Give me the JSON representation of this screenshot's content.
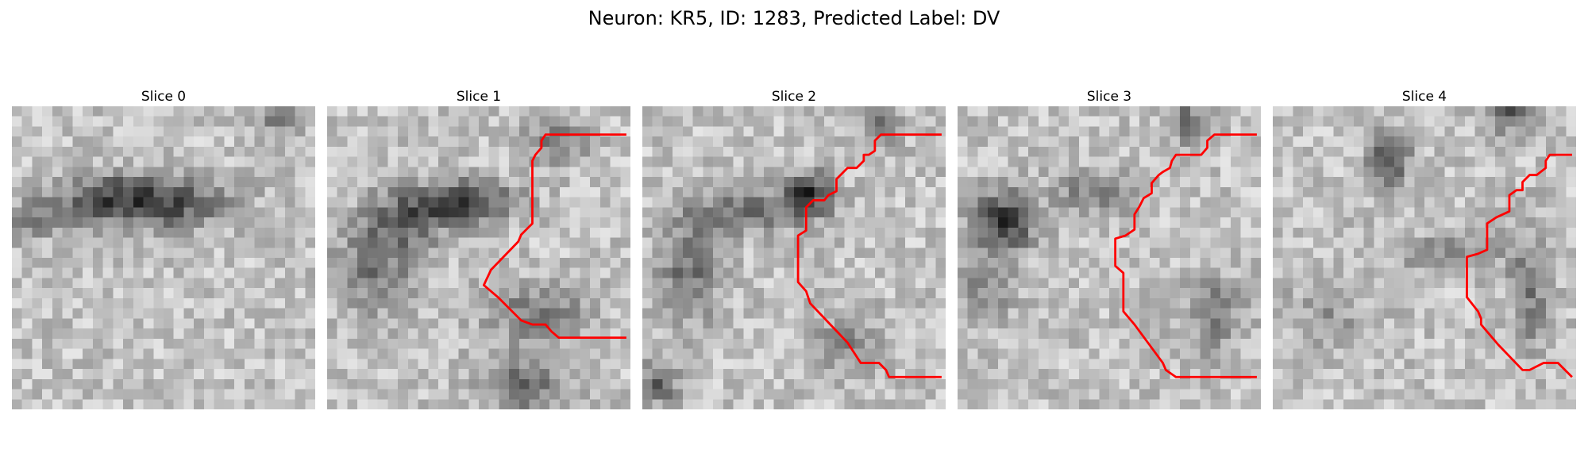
{
  "figure": {
    "title": "Neuron: KR5, ID: 1283, Predicted Label: DV"
  },
  "panels": [
    {
      "title": "Slice 0",
      "has_outline": false
    },
    {
      "title": "Slice 1",
      "has_outline": true
    },
    {
      "title": "Slice 2",
      "has_outline": true
    },
    {
      "title": "Slice 3",
      "has_outline": true
    },
    {
      "title": "Slice 4",
      "has_outline": true
    }
  ],
  "colors": {
    "outline": "#ff0000",
    "colormap": "gray"
  }
}
